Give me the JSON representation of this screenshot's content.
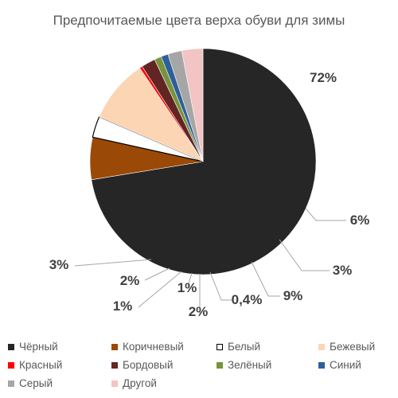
{
  "chart_data": {
    "type": "pie",
    "title": "Предпочитаемые цвета верха обуви для зимы",
    "slices": [
      {
        "name": "Чёрный",
        "value": 72,
        "label": "72%",
        "color": "#262626"
      },
      {
        "name": "Коричневый",
        "value": 6,
        "label": "6%",
        "color": "#9a4a06"
      },
      {
        "name": "Белый",
        "value": 3,
        "label": "3%",
        "color": "#ffffff"
      },
      {
        "name": "Бежевый",
        "value": 9,
        "label": "9%",
        "color": "#fcd5b5"
      },
      {
        "name": "Красный",
        "value": 0.4,
        "label": "0,4%",
        "color": "#ff0000"
      },
      {
        "name": "Бордовый",
        "value": 2,
        "label": "2%",
        "color": "#632523"
      },
      {
        "name": "Зелёный",
        "value": 1,
        "label": "1%",
        "color": "#77933c"
      },
      {
        "name": "Синий",
        "value": 1,
        "label": "1%",
        "color": "#2e5f9a"
      },
      {
        "name": "Серый",
        "value": 2,
        "label": "2%",
        "color": "#a6a6a6"
      },
      {
        "name": "Другой",
        "value": 3,
        "label": "3%",
        "color": "#f2c4c4"
      }
    ],
    "legend_position": "bottom"
  }
}
